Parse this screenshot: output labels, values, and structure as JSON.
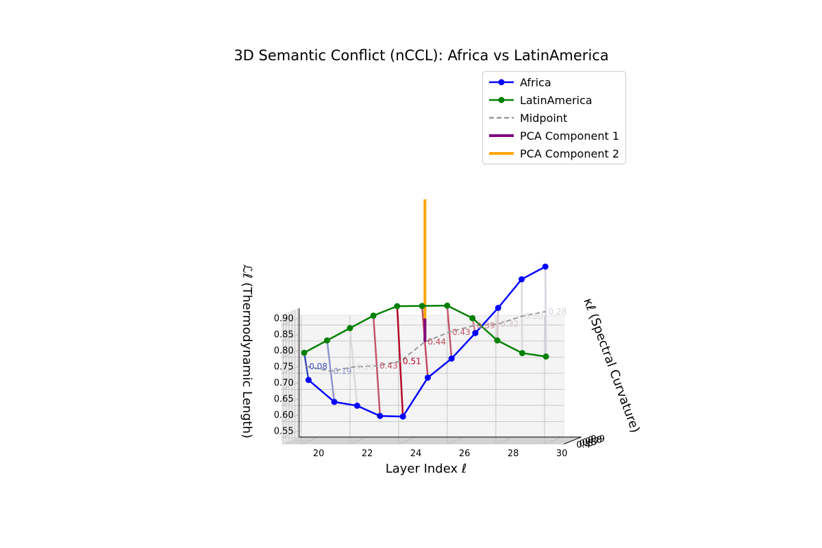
{
  "chart_data": {
    "type": "line",
    "title": "3D Semantic Conflict (nCCL): Africa vs LatinAmerica",
    "xlabel": "Layer Index ℓ",
    "ylabel": "κℓ (Spectral Curvature)",
    "zlabel": "ℒℓ (Thermodynamic Length)",
    "x_ticks": [
      "20",
      "22",
      "24",
      "26",
      "28",
      "30"
    ],
    "y_ticks": [
      "0.4",
      "0.5",
      "0.6",
      "0.7",
      "0.8",
      "0.9"
    ],
    "z_ticks": [
      "0.55",
      "0.60",
      "0.65",
      "0.70",
      "0.75",
      "0.80",
      "0.85",
      "0.90"
    ],
    "xlim": [
      19.2,
      30.8
    ],
    "ylim": [
      0.35,
      0.95
    ],
    "zlim": [
      0.53,
      0.93
    ],
    "grid": true,
    "legend_position": "top-right",
    "layers": [
      20,
      21,
      22,
      23,
      24,
      25,
      26,
      27,
      28,
      29,
      30
    ],
    "series": [
      {
        "name": "Africa",
        "color": "#0000ff",
        "kappa": [
          0.6,
          0.65,
          0.6,
          0.55,
          0.5,
          0.52,
          0.5,
          0.48,
          0.43,
          0.4,
          0.38
        ],
        "length": [
          0.72,
          0.65,
          0.64,
          0.61,
          0.61,
          0.73,
          0.79,
          0.87,
          0.95,
          1.04,
          1.08
        ]
      },
      {
        "name": "LatinAmerica",
        "color": "#008000",
        "kappa": [
          0.45,
          0.4,
          0.35,
          0.32,
          0.3,
          0.32,
          0.35,
          0.38,
          0.4,
          0.42,
          0.4
        ],
        "length": [
          0.81,
          0.85,
          0.89,
          0.93,
          0.96,
          0.96,
          0.96,
          0.92,
          0.85,
          0.81,
          0.8
        ]
      },
      {
        "name": "Midpoint",
        "color": "#999999",
        "style": "dashed"
      },
      {
        "name": "PCA Component 1",
        "color": "#800080"
      },
      {
        "name": "PCA Component 2",
        "color": "#ffa500"
      }
    ],
    "conflict_labels": [
      "0.08",
      "0.19",
      "0.29",
      "0.43",
      "0.51",
      "0.44",
      "0.43",
      "0.39",
      "0.32",
      "0.30",
      "0.28"
    ]
  }
}
